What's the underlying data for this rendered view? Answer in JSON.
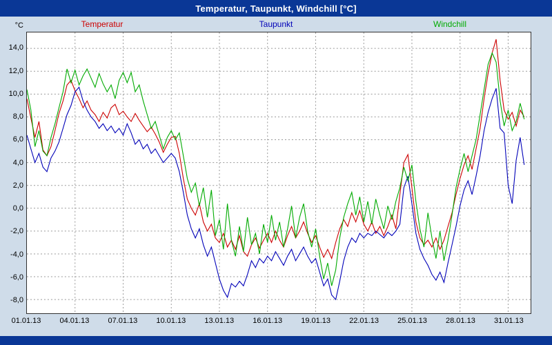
{
  "window": {
    "title": "Temperatur, Taupunkt, Windchill [°C]"
  },
  "colors": {
    "titlebar": "#0a3796",
    "background": "#cfdce9",
    "plot_background": "#ffffff",
    "grid": "#989898",
    "axis_border": "#303030",
    "temperatur": "#cc0000",
    "taupunkt": "#0000b8",
    "windchill": "#00aa00"
  },
  "chart_data": {
    "type": "line",
    "title": "Temperatur, Taupunkt, Windchill [°C]",
    "ylabel": "°C",
    "xlabel": "",
    "grid": "dashed",
    "legend_position": "top",
    "x_start": 0,
    "x_step": 0.25,
    "x_unit_note": "days since 01.01.13",
    "xlim": [
      0,
      31.4
    ],
    "ylim": [
      -9.2,
      15.4
    ],
    "x_ticks": [
      {
        "day": 0,
        "label": "01.01.13"
      },
      {
        "day": 3,
        "label": "04.01.13"
      },
      {
        "day": 6,
        "label": "07.01.13"
      },
      {
        "day": 9,
        "label": "10.01.13"
      },
      {
        "day": 12,
        "label": "13.01.13"
      },
      {
        "day": 15,
        "label": "16.01.13"
      },
      {
        "day": 18,
        "label": "19.01.13"
      },
      {
        "day": 21,
        "label": "22.01.13"
      },
      {
        "day": 24,
        "label": "25.01.13"
      },
      {
        "day": 27,
        "label": "28.01.13"
      },
      {
        "day": 30,
        "label": "31.01.13"
      }
    ],
    "y_ticks": [
      {
        "value": 14,
        "label": "14,0"
      },
      {
        "value": 12,
        "label": "12,0"
      },
      {
        "value": 10,
        "label": "10,0"
      },
      {
        "value": 8,
        "label": "8,0"
      },
      {
        "value": 6,
        "label": "6,0"
      },
      {
        "value": 4,
        "label": "4,0"
      },
      {
        "value": 2,
        "label": "2,0"
      },
      {
        "value": 0,
        "label": "0,0"
      },
      {
        "value": -2,
        "label": "-2,0"
      },
      {
        "value": -4,
        "label": "-4,0"
      },
      {
        "value": -6,
        "label": "-6,0"
      },
      {
        "value": -8,
        "label": "-8,0"
      }
    ],
    "series": [
      {
        "name": "Temperatur",
        "color": "#cc0000",
        "values": [
          9.6,
          7.9,
          6.2,
          7.6,
          5.1,
          4.6,
          5.4,
          6.8,
          8.3,
          9.4,
          10.8,
          11.2,
          10.3,
          9.6,
          8.8,
          9.4,
          8.6,
          8.2,
          7.6,
          8.4,
          7.9,
          8.8,
          9.1,
          8.2,
          8.5,
          8.0,
          7.6,
          8.3,
          7.7,
          7.2,
          6.7,
          7.1,
          6.5,
          5.8,
          4.9,
          5.6,
          6.2,
          6.3,
          4.8,
          2.6,
          0.8,
          0.0,
          -0.6,
          0.4,
          -1.2,
          -2.0,
          -1.4,
          -2.6,
          -3.0,
          -2.2,
          -3.4,
          -2.8,
          -3.6,
          -2.4,
          -3.8,
          -4.2,
          -3.2,
          -2.6,
          -3.5,
          -2.8,
          -2.2,
          -3.0,
          -2.0,
          -2.8,
          -3.4,
          -2.4,
          -1.6,
          -2.6,
          -2.0,
          -1.2,
          -2.2,
          -3.0,
          -2.4,
          -3.4,
          -4.3,
          -3.6,
          -4.4,
          -3.0,
          -1.8,
          -1.0,
          -1.6,
          -0.4,
          -1.2,
          -0.2,
          -1.4,
          -2.0,
          -1.2,
          -2.2,
          -1.6,
          -2.4,
          -1.6,
          -0.6,
          -1.8,
          1.2,
          4.0,
          4.7,
          1.8,
          -1.2,
          -2.6,
          -3.2,
          -2.8,
          -3.4,
          -2.6,
          -3.6,
          -2.8,
          -1.6,
          -0.4,
          1.2,
          2.6,
          3.8,
          4.6,
          3.4,
          5.2,
          7.0,
          9.6,
          11.8,
          13.6,
          14.8,
          11.2,
          8.6,
          7.8,
          8.4,
          7.2,
          8.6,
          8.0
        ]
      },
      {
        "name": "Taupunkt",
        "color": "#0000b8",
        "values": [
          6.4,
          5.2,
          4.0,
          4.8,
          3.6,
          3.2,
          4.4,
          5.0,
          5.8,
          7.0,
          8.2,
          9.0,
          10.2,
          10.6,
          9.4,
          8.6,
          8.0,
          7.6,
          7.0,
          7.4,
          6.8,
          7.2,
          6.6,
          7.0,
          6.4,
          7.4,
          6.6,
          5.6,
          6.0,
          5.2,
          5.6,
          4.8,
          5.2,
          4.6,
          4.0,
          4.4,
          4.8,
          4.4,
          3.2,
          1.4,
          -0.6,
          -1.8,
          -2.6,
          -1.8,
          -3.2,
          -4.2,
          -3.4,
          -4.8,
          -6.2,
          -7.2,
          -7.8,
          -6.6,
          -6.9,
          -6.4,
          -6.8,
          -5.8,
          -4.6,
          -5.2,
          -4.4,
          -4.8,
          -4.2,
          -4.6,
          -3.8,
          -4.4,
          -5.0,
          -4.2,
          -3.6,
          -4.6,
          -4.0,
          -3.4,
          -4.2,
          -4.8,
          -4.4,
          -5.6,
          -6.8,
          -6.2,
          -7.6,
          -8.0,
          -6.4,
          -4.6,
          -3.4,
          -2.6,
          -3.0,
          -2.2,
          -2.6,
          -2.2,
          -2.4,
          -2.0,
          -2.3,
          -2.6,
          -2.1,
          -2.4,
          -2.0,
          -1.4,
          1.8,
          2.8,
          0.4,
          -2.2,
          -3.6,
          -4.4,
          -5.0,
          -5.8,
          -6.3,
          -5.6,
          -6.5,
          -4.8,
          -3.2,
          -1.6,
          0.2,
          1.6,
          2.4,
          1.2,
          2.8,
          4.6,
          6.8,
          8.4,
          9.6,
          10.5,
          7.0,
          6.6,
          2.0,
          0.4,
          4.2,
          6.2,
          3.8
        ]
      },
      {
        "name": "Windchill",
        "color": "#00aa00",
        "values": [
          10.4,
          8.6,
          5.4,
          6.8,
          5.0,
          4.6,
          6.2,
          7.4,
          8.8,
          10.2,
          12.2,
          11.0,
          12.1,
          10.8,
          11.6,
          12.2,
          11.4,
          10.6,
          11.8,
          10.9,
          10.2,
          10.8,
          9.6,
          11.2,
          11.9,
          11.0,
          11.9,
          10.2,
          10.8,
          9.4,
          8.2,
          7.0,
          7.6,
          6.4,
          5.2,
          6.2,
          6.8,
          6.0,
          6.6,
          4.6,
          2.6,
          1.4,
          2.2,
          0.2,
          1.8,
          -0.8,
          1.6,
          -2.4,
          -1.0,
          -3.6,
          0.4,
          -2.8,
          -4.2,
          -1.6,
          -3.8,
          -0.8,
          -3.2,
          -2.2,
          -4.0,
          -1.4,
          -3.0,
          -0.6,
          -2.8,
          -1.2,
          -3.4,
          -1.8,
          0.2,
          -2.6,
          -0.8,
          0.4,
          -2.0,
          -3.4,
          -1.8,
          -4.2,
          -6.2,
          -4.8,
          -6.8,
          -5.4,
          -2.6,
          -0.8,
          0.4,
          1.4,
          -0.6,
          1.0,
          -1.2,
          0.6,
          -1.4,
          0.8,
          -0.6,
          -1.8,
          0.2,
          -1.0,
          0.6,
          1.8,
          3.6,
          2.4,
          3.8,
          0.6,
          -1.8,
          -3.4,
          -0.4,
          -2.6,
          -4.4,
          -2.0,
          -4.6,
          -2.8,
          -0.6,
          1.8,
          3.4,
          4.8,
          3.2,
          4.6,
          6.0,
          8.2,
          10.4,
          12.6,
          13.6,
          12.8,
          9.4,
          7.2,
          8.6,
          6.8,
          7.6,
          9.2,
          7.8
        ]
      }
    ]
  }
}
